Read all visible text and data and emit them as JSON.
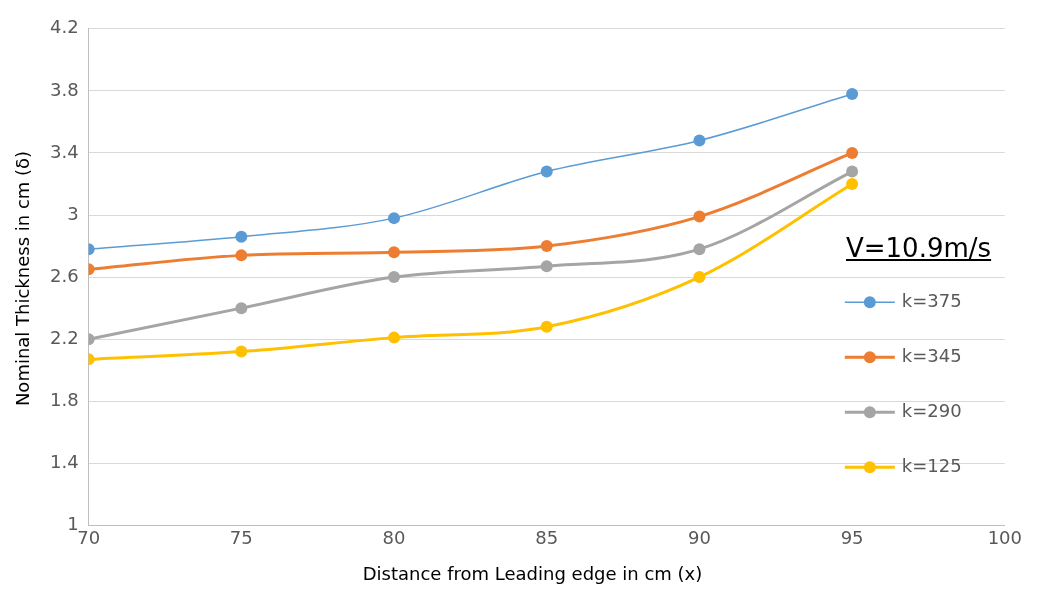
{
  "chart_data": {
    "type": "line",
    "xlabel": "Distance from Leading edge in cm (x)",
    "ylabel": "Nominal Thickness in cm (δ)",
    "legend_title": "V=10.9m/s",
    "x": [
      70,
      75,
      80,
      85,
      90,
      95
    ],
    "series": [
      {
        "name": "k=375",
        "color": "#5b9bd5",
        "values": [
          2.78,
          2.86,
          2.98,
          3.28,
          3.48,
          3.78
        ]
      },
      {
        "name": "k=345",
        "color": "#ed7d31",
        "values": [
          2.65,
          2.74,
          2.76,
          2.8,
          2.99,
          3.4
        ]
      },
      {
        "name": "k=290",
        "color": "#a5a5a5",
        "values": [
          2.2,
          2.4,
          2.6,
          2.67,
          2.78,
          3.28
        ]
      },
      {
        "name": "k=125",
        "color": "#ffc000",
        "values": [
          2.07,
          2.12,
          2.21,
          2.28,
          2.6,
          3.2
        ]
      }
    ],
    "xlim": [
      70,
      100
    ],
    "xticks": [
      70,
      75,
      80,
      85,
      90,
      95,
      100
    ],
    "ylim": [
      1,
      4.2
    ],
    "yticks": [
      1,
      1.4,
      1.8,
      2.2,
      2.6,
      3,
      3.4,
      3.8,
      4.2
    ],
    "grid": "y",
    "legend": "right",
    "marker": "circle",
    "line_style": "solid"
  }
}
